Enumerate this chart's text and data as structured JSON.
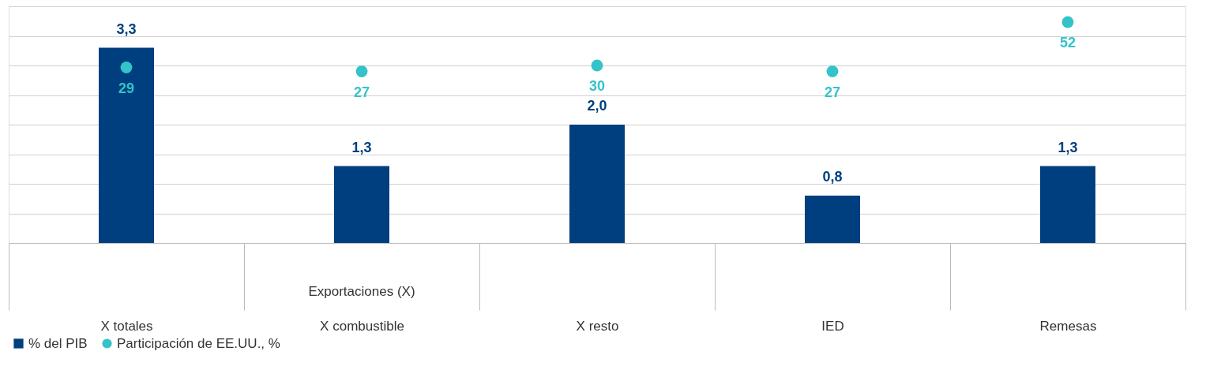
{
  "chart_data": {
    "type": "bar",
    "categories": [
      "X totales",
      "X combustible",
      "X resto",
      "IED",
      "Remesas"
    ],
    "series": [
      {
        "name": "% del PIB",
        "color": "#003f7f",
        "values": [
          3.3,
          1.3,
          2.0,
          0.8,
          1.3
        ],
        "value_labels": [
          "3,3",
          "1,3",
          "2,0",
          "0,8",
          "1,3"
        ]
      },
      {
        "name": "Participación de EE.UU., %",
        "type": "scatter",
        "axis": "y2",
        "color": "#33c3c8",
        "values": [
          29,
          27,
          30,
          27,
          52
        ]
      }
    ],
    "annotations": [
      "Exportaciones (X)"
    ],
    "ylim": [
      0,
      4
    ],
    "yticks": [
      {
        "value": 0,
        "label": null
      },
      {
        "value": 0.5,
        "label": null
      },
      {
        "value": 1,
        "label": null
      },
      {
        "value": 1.5,
        "label": null
      },
      {
        "value": 2,
        "label": null
      },
      {
        "value": 2.5,
        "label": null
      },
      {
        "value": 3,
        "label": null
      },
      {
        "value": 3.5,
        "label": null
      },
      {
        "value": 4,
        "label": null
      }
    ],
    "y2lim": [
      -60,
      60
    ],
    "tick_labels": "x",
    "grid": "y",
    "data_labels": true,
    "legend": "bottom"
  }
}
